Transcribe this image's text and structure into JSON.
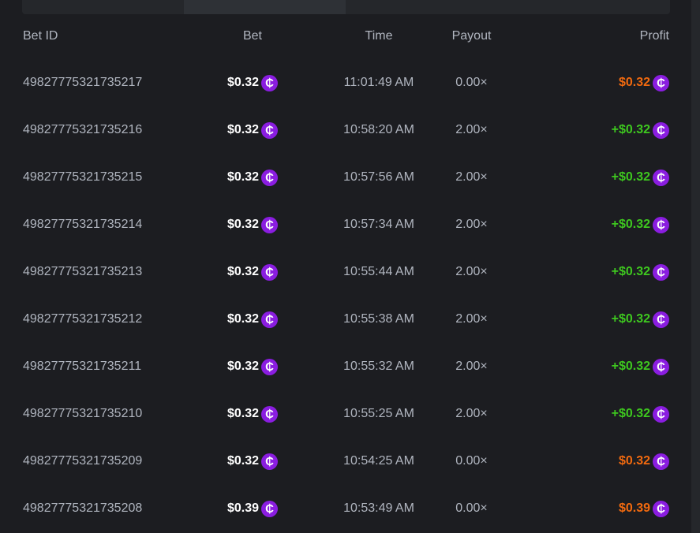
{
  "colors": {
    "loss": "#f26a0f",
    "win": "#3ec81f",
    "coin": "#8a1de0"
  },
  "headers": {
    "bet_id": "Bet ID",
    "bet": "Bet",
    "time": "Time",
    "payout": "Payout",
    "profit": "Profit"
  },
  "coin_icon": "₵",
  "rows": [
    {
      "id": "49827775321735217",
      "bet": "$0.32",
      "time": "11:01:49 AM",
      "payout": "0.00×",
      "profit": "$0.32",
      "win": false
    },
    {
      "id": "49827775321735216",
      "bet": "$0.32",
      "time": "10:58:20 AM",
      "payout": "2.00×",
      "profit": "+$0.32",
      "win": true
    },
    {
      "id": "49827775321735215",
      "bet": "$0.32",
      "time": "10:57:56 AM",
      "payout": "2.00×",
      "profit": "+$0.32",
      "win": true
    },
    {
      "id": "49827775321735214",
      "bet": "$0.32",
      "time": "10:57:34 AM",
      "payout": "2.00×",
      "profit": "+$0.32",
      "win": true
    },
    {
      "id": "49827775321735213",
      "bet": "$0.32",
      "time": "10:55:44 AM",
      "payout": "2.00×",
      "profit": "+$0.32",
      "win": true
    },
    {
      "id": "49827775321735212",
      "bet": "$0.32",
      "time": "10:55:38 AM",
      "payout": "2.00×",
      "profit": "+$0.32",
      "win": true
    },
    {
      "id": "49827775321735211",
      "bet": "$0.32",
      "time": "10:55:32 AM",
      "payout": "2.00×",
      "profit": "+$0.32",
      "win": true
    },
    {
      "id": "49827775321735210",
      "bet": "$0.32",
      "time": "10:55:25 AM",
      "payout": "2.00×",
      "profit": "+$0.32",
      "win": true
    },
    {
      "id": "49827775321735209",
      "bet": "$0.32",
      "time": "10:54:25 AM",
      "payout": "0.00×",
      "profit": "$0.32",
      "win": false
    },
    {
      "id": "49827775321735208",
      "bet": "$0.39",
      "time": "10:53:49 AM",
      "payout": "0.00×",
      "profit": "$0.39",
      "win": false
    }
  ]
}
